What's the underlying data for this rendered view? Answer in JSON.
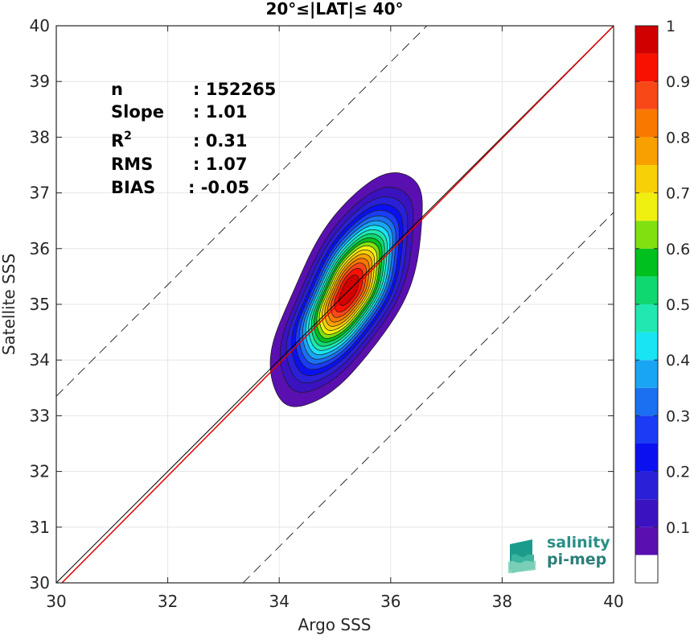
{
  "chart_data": {
    "type": "contour",
    "title": "20°≤|LAT|≤ 40°",
    "xlabel": "Argo SSS",
    "ylabel": "Satellite SSS",
    "xlim": [
      30,
      40
    ],
    "ylim": [
      30,
      40
    ],
    "xticks": [
      30,
      32,
      34,
      36,
      38,
      40
    ],
    "yticks": [
      30,
      31,
      32,
      33,
      34,
      35,
      36,
      37,
      38,
      39,
      40
    ],
    "grid": true,
    "reference_lines": {
      "one_to_one": {
        "color": "#000000",
        "style": "solid"
      },
      "fit": {
        "slope": 1.01,
        "color": "#e00000",
        "style": "solid"
      },
      "offset_bounds": {
        "offset": 3.35,
        "color": "#000000",
        "style": "dashed"
      }
    },
    "density": {
      "center": [
        35.25,
        35.25
      ],
      "sigma_major": 0.95,
      "sigma_minor": 0.38,
      "angle_deg": 62,
      "min_level": 0.05,
      "skew": 0.35
    },
    "stats": [
      {
        "label": "n",
        "sep": ": ",
        "value": "152265"
      },
      {
        "label": "Slope",
        "sep": ": ",
        "value": "1.01"
      },
      {
        "label": "R",
        "sup": "2",
        "sep": ": ",
        "value": "0.31"
      },
      {
        "label": "RMS",
        "sep": ": ",
        "value": "1.07"
      },
      {
        "label": "BIAS",
        "sep": ": ",
        "value": "-0.05"
      }
    ],
    "colorbar": {
      "levels": [
        0,
        0.05,
        0.1,
        0.15,
        0.2,
        0.25,
        0.3,
        0.35,
        0.4,
        0.45,
        0.5,
        0.55,
        0.6,
        0.65,
        0.7,
        0.75,
        0.8,
        0.85,
        0.9,
        0.95,
        1
      ],
      "colors": [
        "#ffffff",
        "#5a0fb0",
        "#3a12c0",
        "#2a20d8",
        "#0a10f0",
        "#1a3cf4",
        "#1a70f0",
        "#1aa4f4",
        "#18e4f4",
        "#20e8b0",
        "#10d870",
        "#00c020",
        "#80e010",
        "#f0f010",
        "#f8d008",
        "#f8a000",
        "#f87800",
        "#f84818",
        "#f81000",
        "#d00000",
        "#800000"
      ],
      "ticks": [
        0.1,
        0.2,
        0.3,
        0.4,
        0.5,
        0.6,
        0.7,
        0.8,
        0.9,
        1
      ],
      "tick_labels": [
        "0.1",
        "0.2",
        "0.3",
        "0.4",
        "0.5",
        "0.6",
        "0.7",
        "0.8",
        "0.9",
        "1"
      ]
    }
  },
  "logo": {
    "line1": "salinity",
    "line2": "pi-mep",
    "colors": [
      "#1a9b8c",
      "#3bb5a0",
      "#7fd0b8"
    ]
  }
}
